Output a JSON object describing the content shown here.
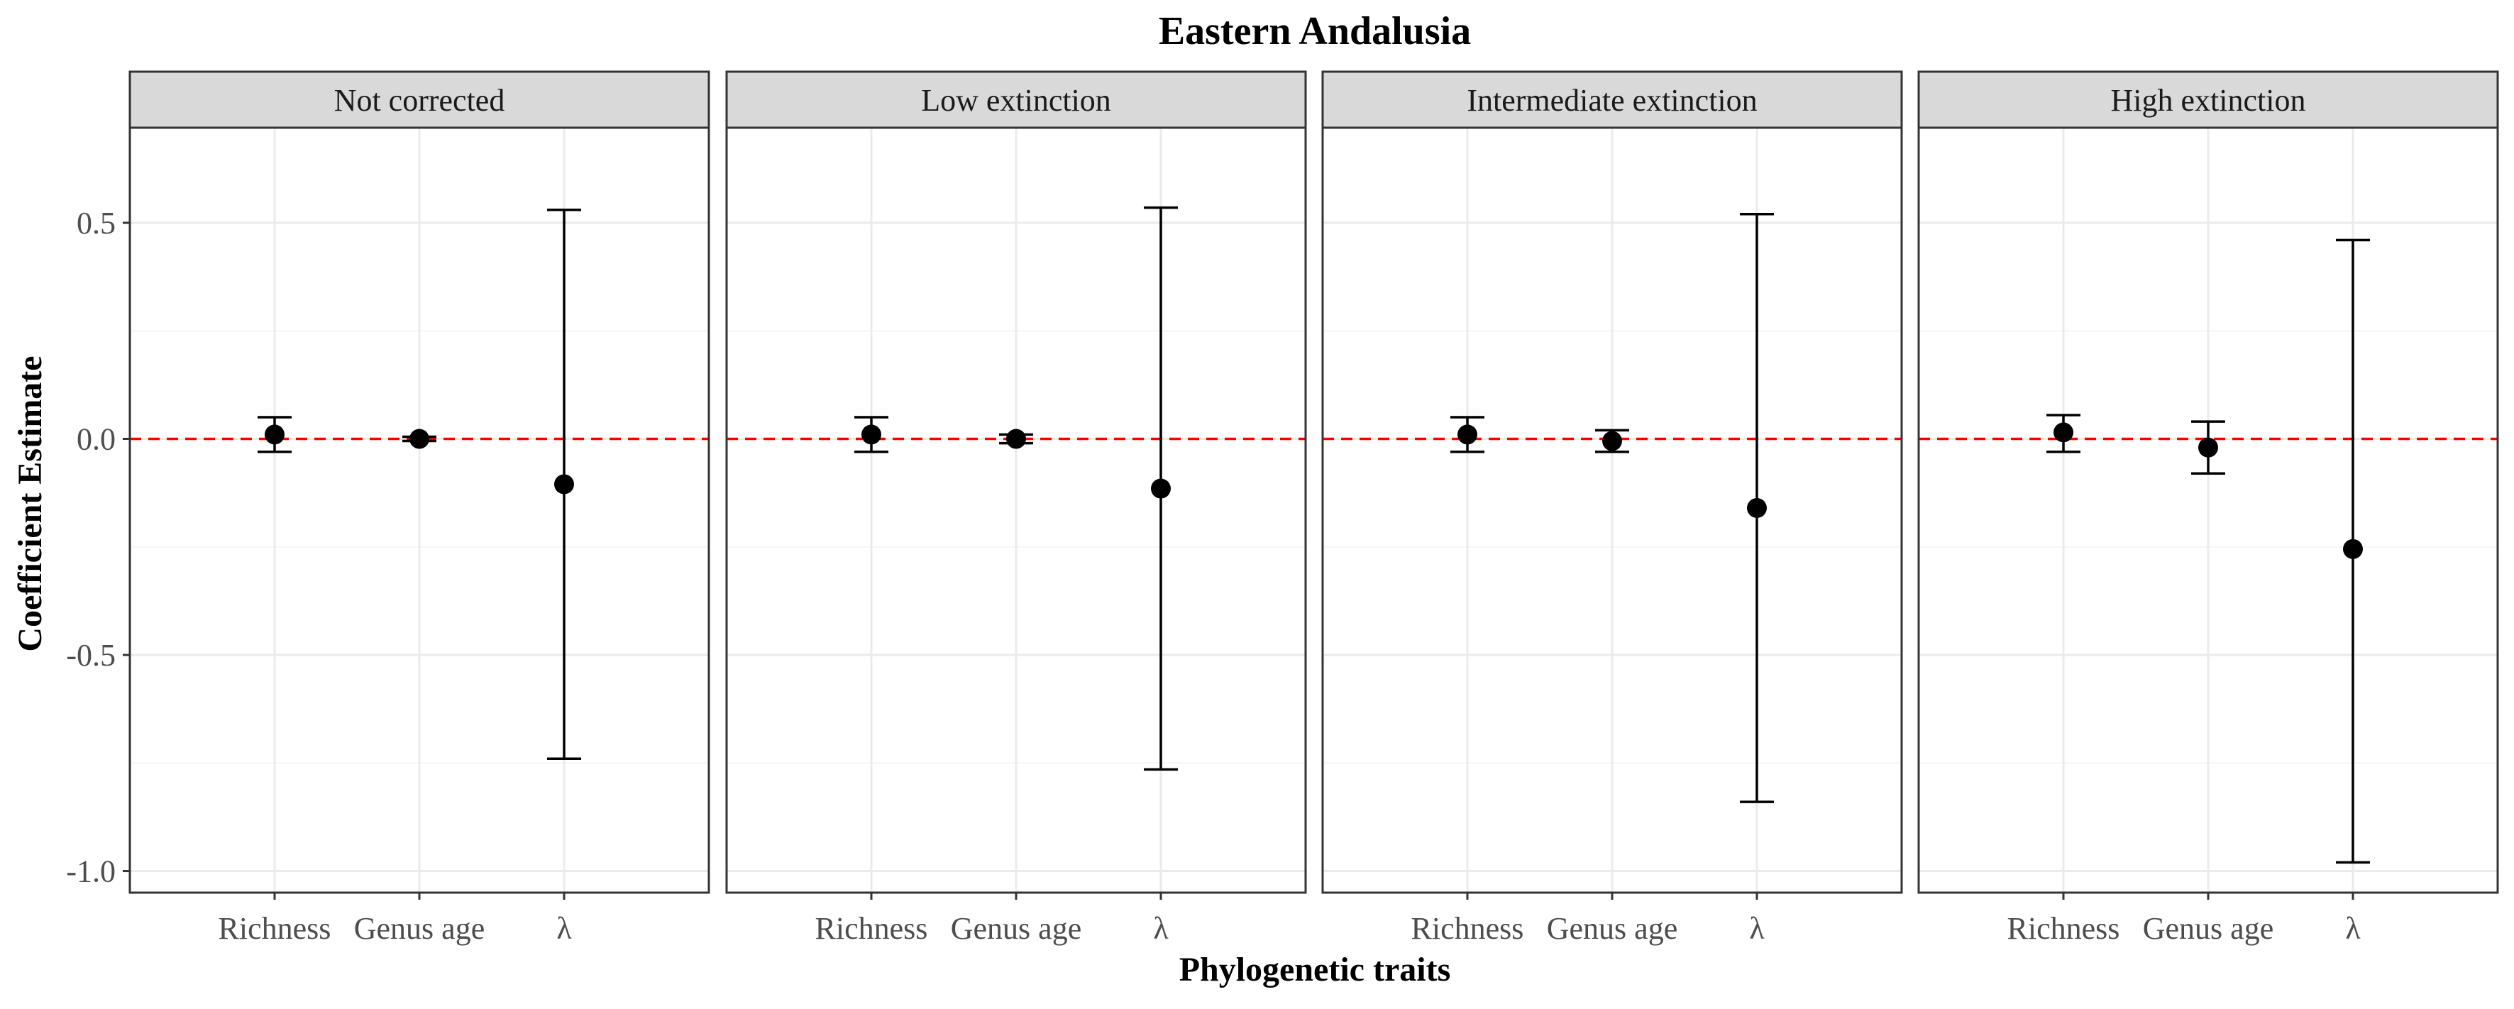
{
  "chart_data": {
    "type": "scatter",
    "title": "Eastern Andalusia",
    "xlabel": "Phylogenetic traits",
    "ylabel": "Coefficient Estimate",
    "categories": [
      "Richness",
      "Genus age",
      "λ"
    ],
    "ylim": [
      -1.05,
      0.72
    ],
    "yticks": [
      0.5,
      0.0,
      -0.5,
      -1.0
    ],
    "ytick_labels": [
      "0.5",
      "0.0",
      "-0.5",
      "-1.0"
    ],
    "reference_line": {
      "y": 0,
      "style": "dashed",
      "color": "#ff0000"
    },
    "grid": true,
    "panels": [
      {
        "label": "Not corrected",
        "points": [
          {
            "category": "Richness",
            "estimate": 0.01,
            "lower": -0.03,
            "upper": 0.05
          },
          {
            "category": "Genus age",
            "estimate": 0.0,
            "lower": -0.005,
            "upper": 0.005
          },
          {
            "category": "λ",
            "estimate": -0.105,
            "lower": -0.74,
            "upper": 0.53
          }
        ]
      },
      {
        "label": "Low extinction",
        "points": [
          {
            "category": "Richness",
            "estimate": 0.01,
            "lower": -0.03,
            "upper": 0.05
          },
          {
            "category": "Genus age",
            "estimate": 0.0,
            "lower": -0.01,
            "upper": 0.01
          },
          {
            "category": "λ",
            "estimate": -0.115,
            "lower": -0.765,
            "upper": 0.535
          }
        ]
      },
      {
        "label": "Intermediate extinction",
        "points": [
          {
            "category": "Richness",
            "estimate": 0.01,
            "lower": -0.03,
            "upper": 0.05
          },
          {
            "category": "Genus age",
            "estimate": -0.005,
            "lower": -0.03,
            "upper": 0.02
          },
          {
            "category": "λ",
            "estimate": -0.16,
            "lower": -0.84,
            "upper": 0.52
          }
        ]
      },
      {
        "label": "High extinction",
        "points": [
          {
            "category": "Richness",
            "estimate": 0.015,
            "lower": -0.03,
            "upper": 0.055
          },
          {
            "category": "Genus age",
            "estimate": -0.02,
            "lower": -0.08,
            "upper": 0.04
          },
          {
            "category": "λ",
            "estimate": -0.255,
            "lower": -0.98,
            "upper": 0.46
          }
        ]
      }
    ],
    "colors": {
      "point": "#000000",
      "errorbar": "#000000",
      "grid_major": "#ebebeb",
      "grid_minor": "#f5f5f5",
      "strip_fill": "#d9d9d9",
      "panel_border": "#333333",
      "reference_line": "#ff0000",
      "tick_label": "#4d4d4d"
    }
  }
}
